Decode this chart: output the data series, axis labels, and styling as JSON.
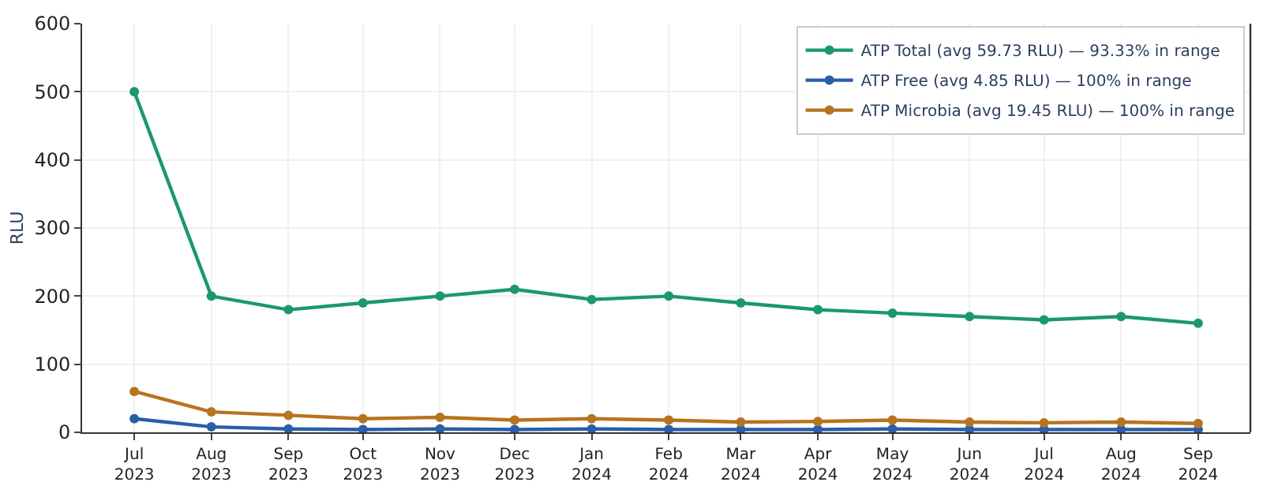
{
  "chart_data": {
    "type": "line",
    "ylabel": "RLU",
    "x": [
      "2023-07",
      "2023-08",
      "2023-09",
      "2023-10",
      "2023-11",
      "2023-12",
      "2024-01",
      "2024-02",
      "2024-03",
      "2024-04",
      "2024-05",
      "2024-06",
      "2024-07",
      "2024-08",
      "2024-09"
    ],
    "series": [
      {
        "name": "ATP Total (avg 59.73 RLU) — 93.33% in range",
        "color": "#1a9870",
        "values": [
          500,
          200,
          180,
          190,
          200,
          210,
          195,
          200,
          190,
          180,
          175,
          170,
          165,
          170,
          160
        ]
      },
      {
        "name": "ATP Free (avg 4.85 RLU) — 100% in range",
        "color": "#2a5ea8",
        "values": [
          20,
          8,
          5,
          4,
          5,
          4,
          5,
          4,
          4,
          4,
          5,
          4,
          4,
          4,
          4
        ]
      },
      {
        "name": "ATP Microbia (avg 19.45 RLU) — 100% in range",
        "color": "#b87320",
        "values": [
          60,
          30,
          25,
          20,
          22,
          18,
          20,
          18,
          15,
          16,
          18,
          15,
          14,
          15,
          13
        ]
      }
    ],
    "xlim": [
      "2023-06-10",
      "2024-09-22"
    ],
    "xticks": [
      {
        "value": "2023-07",
        "label": "Jul\n2023"
      },
      {
        "value": "2023-08",
        "label": "Aug\n2023"
      },
      {
        "value": "2023-09",
        "label": "Sep\n2023"
      },
      {
        "value": "2023-10",
        "label": "Oct\n2023"
      },
      {
        "value": "2023-11",
        "label": "Nov\n2023"
      },
      {
        "value": "2023-12",
        "label": "Dec\n2023"
      },
      {
        "value": "2024-01",
        "label": "Jan\n2024"
      },
      {
        "value": "2024-02",
        "label": "Feb\n2024"
      },
      {
        "value": "2024-03",
        "label": "Mar\n2024"
      },
      {
        "value": "2024-04",
        "label": "Apr\n2024"
      },
      {
        "value": "2024-05",
        "label": "May\n2024"
      },
      {
        "value": "2024-06",
        "label": "Jun\n2024"
      },
      {
        "value": "2024-07",
        "label": "Jul\n2024"
      },
      {
        "value": "2024-08",
        "label": "Aug\n2024"
      },
      {
        "value": "2024-09",
        "label": "Sep\n2024"
      }
    ],
    "ylim": [
      0,
      600
    ],
    "yticks": [
      0,
      100,
      200,
      300,
      400,
      500,
      600
    ],
    "grid": true,
    "legend": "top right",
    "marker": "circle",
    "line_style": "solid"
  }
}
